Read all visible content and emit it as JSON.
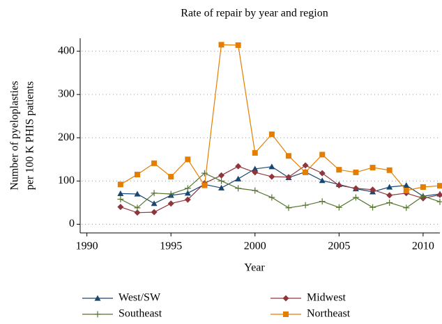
{
  "chart_data": {
    "type": "line",
    "title": "Rate of repair by year and region",
    "xlabel": "Year",
    "ylabel": [
      "Number of pyeloplasties",
      "per 100 K PHIS patients"
    ],
    "x": [
      1992,
      1993,
      1994,
      1995,
      1996,
      1997,
      1998,
      1999,
      2000,
      2001,
      2002,
      2003,
      2004,
      2005,
      2006,
      2007,
      2008,
      2009,
      2010,
      2011
    ],
    "series": [
      {
        "name": "West/SW",
        "color": "#1a476f",
        "marker": "triangle",
        "values": [
          71,
          70,
          48,
          67,
          72,
          92,
          84,
          105,
          128,
          133,
          108,
          121,
          101,
          92,
          82,
          75,
          86,
          90,
          65,
          70
        ]
      },
      {
        "name": "Midwest",
        "color": "#90353b",
        "marker": "diamond",
        "values": [
          40,
          27,
          28,
          48,
          57,
          95,
          113,
          134,
          120,
          110,
          109,
          136,
          118,
          90,
          83,
          80,
          67,
          72,
          60,
          68
        ]
      },
      {
        "name": "Southeast",
        "color": "#55752f",
        "marker": "plus",
        "values": [
          58,
          38,
          72,
          70,
          83,
          118,
          100,
          83,
          78,
          62,
          38,
          44,
          53,
          39,
          62,
          39,
          50,
          38,
          65,
          52
        ]
      },
      {
        "name": "Northeast",
        "color": "#e37e00",
        "marker": "square",
        "values": [
          92,
          115,
          141,
          110,
          150,
          90,
          415,
          414,
          165,
          208,
          158,
          120,
          161,
          126,
          120,
          131,
          125,
          78,
          86,
          89
        ]
      }
    ],
    "xlim": [
      1989.6,
      2011
    ],
    "xticks": [
      1990,
      1995,
      2000,
      2005,
      2010
    ],
    "ylim": [
      -20,
      430
    ],
    "yticks": [
      0,
      100,
      200,
      300,
      400
    ],
    "grid": true
  }
}
